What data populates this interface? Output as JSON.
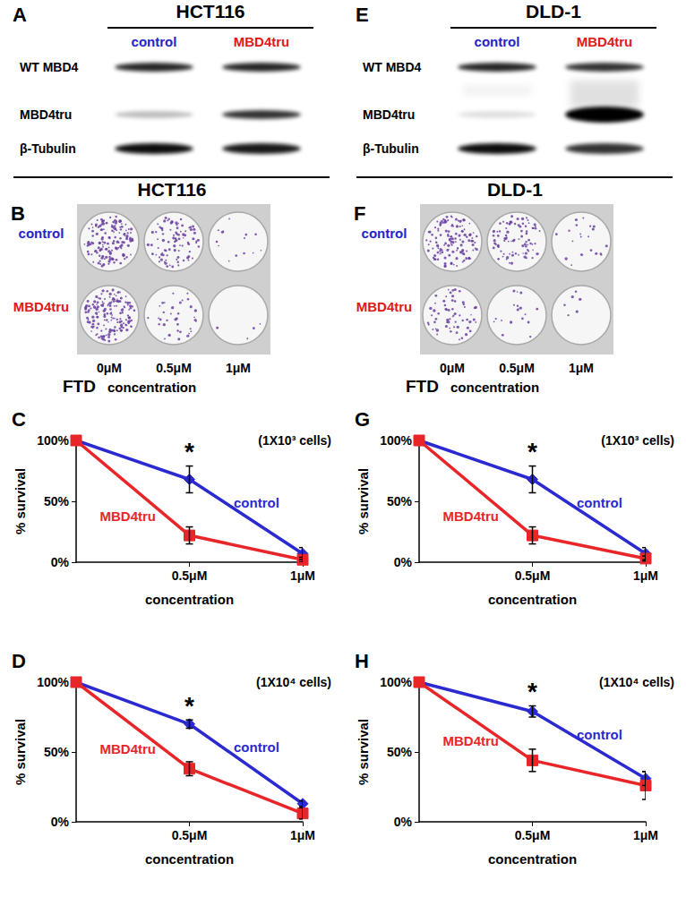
{
  "sections": [
    "HCT116",
    "DLD-1"
  ],
  "blots": [
    {
      "letter": "A",
      "title": "HCT116",
      "lanes": [
        {
          "label": "control",
          "color": "#2323c8"
        },
        {
          "label": "MBD4tru",
          "color": "#e01818"
        }
      ],
      "bands": [
        "WT MBD4",
        "MBD4tru",
        "β-Tubulin"
      ]
    },
    {
      "letter": "E",
      "title": "DLD-1",
      "lanes": [
        {
          "label": "control",
          "color": "#2323c8"
        },
        {
          "label": "MBD4tru",
          "color": "#e01818"
        }
      ],
      "bands": [
        "WT MBD4",
        "MBD4tru",
        "β-Tubulin"
      ]
    }
  ],
  "plates": [
    {
      "letter": "B",
      "rows": [
        {
          "label": "control",
          "color": "#2323c8"
        },
        {
          "label": "MBD4tru",
          "color": "#e01818"
        }
      ],
      "columns": [
        "0μM",
        "0.5μM",
        "1μM"
      ],
      "drug": "FTD",
      "axis_label": "concentration"
    },
    {
      "letter": "F",
      "rows": [
        {
          "label": "control",
          "color": "#2323c8"
        },
        {
          "label": "MBD4tru",
          "color": "#e01818"
        }
      ],
      "columns": [
        "0μM",
        "0.5μM",
        "1μM"
      ],
      "drug": "FTD",
      "axis_label": "concentration"
    }
  ],
  "chart_data": [
    {
      "type": "line",
      "letter": "C",
      "subtitle": "(1X10³ cells)",
      "annotation": {
        "text": "*",
        "x": 0.5
      },
      "x_label": "concentration",
      "y_label": "% survival",
      "x": [
        0,
        0.5,
        1
      ],
      "xlim": [
        0,
        1
      ],
      "xticks": [
        {
          "value": 0.5,
          "label": "0.5μM"
        },
        {
          "value": 1,
          "label": "1μM"
        }
      ],
      "ylim": [
        0,
        100
      ],
      "yticks": [
        {
          "value": 0,
          "label": "0%"
        },
        {
          "value": 50,
          "label": "50%"
        },
        {
          "value": 100,
          "label": "100%"
        }
      ],
      "series": [
        {
          "name": "control",
          "color": "#2a2ad0",
          "marker": "diamond",
          "values": [
            100,
            68,
            7
          ],
          "errors": [
            0,
            11,
            5
          ]
        },
        {
          "name": "MBD4tru",
          "color": "#e8262a",
          "marker": "square",
          "values": [
            100,
            22,
            2
          ],
          "errors": [
            0,
            7,
            2
          ]
        }
      ]
    },
    {
      "type": "line",
      "letter": "D",
      "subtitle": "(1X10⁴ cells)",
      "annotation": {
        "text": "*",
        "x": 0.5
      },
      "x_label": "concentration",
      "y_label": "% survival",
      "x": [
        0,
        0.5,
        1
      ],
      "xlim": [
        0,
        1
      ],
      "xticks": [
        {
          "value": 0.5,
          "label": "0.5μM"
        },
        {
          "value": 1,
          "label": "1μM"
        }
      ],
      "ylim": [
        0,
        100
      ],
      "yticks": [
        {
          "value": 0,
          "label": "0%"
        },
        {
          "value": 50,
          "label": "50%"
        },
        {
          "value": 100,
          "label": "100%"
        }
      ],
      "series": [
        {
          "name": "control",
          "color": "#2a2ad0",
          "marker": "diamond",
          "values": [
            100,
            70,
            13
          ],
          "errors": [
            0,
            3,
            2
          ]
        },
        {
          "name": "MBD4tru",
          "color": "#e8262a",
          "marker": "square",
          "values": [
            100,
            38,
            6
          ],
          "errors": [
            0,
            5,
            4
          ]
        }
      ]
    },
    {
      "type": "line",
      "letter": "G",
      "subtitle": "(1X10³ cells)",
      "annotation": {
        "text": "*",
        "x": 0.5
      },
      "x_label": "concentration",
      "y_label": "% survival",
      "x": [
        0,
        0.5,
        1
      ],
      "xlim": [
        0,
        1
      ],
      "xticks": [
        {
          "value": 0.5,
          "label": "0.5μM"
        },
        {
          "value": 1,
          "label": "1μM"
        }
      ],
      "ylim": [
        0,
        100
      ],
      "yticks": [
        {
          "value": 0,
          "label": "0%"
        },
        {
          "value": 50,
          "label": "50%"
        },
        {
          "value": 100,
          "label": "100%"
        }
      ],
      "series": [
        {
          "name": "control",
          "color": "#2a2ad0",
          "marker": "diamond",
          "values": [
            100,
            68,
            7
          ],
          "errors": [
            0,
            11,
            5
          ]
        },
        {
          "name": "MBD4tru",
          "color": "#e8262a",
          "marker": "square",
          "values": [
            100,
            22,
            3
          ],
          "errors": [
            0,
            7,
            2
          ]
        }
      ]
    },
    {
      "type": "line",
      "letter": "H",
      "subtitle": "(1X10⁴ cells)",
      "annotation": {
        "text": "*",
        "x": 0.5
      },
      "x_label": "concentration",
      "y_label": "% survival",
      "x": [
        0,
        0.5,
        1
      ],
      "xlim": [
        0,
        1
      ],
      "xticks": [
        {
          "value": 0.5,
          "label": "0.5μM"
        },
        {
          "value": 1,
          "label": "1μM"
        }
      ],
      "ylim": [
        0,
        100
      ],
      "yticks": [
        {
          "value": 0,
          "label": "0%"
        },
        {
          "value": 50,
          "label": "50%"
        },
        {
          "value": 100,
          "label": "100%"
        }
      ],
      "series": [
        {
          "name": "control",
          "color": "#2a2ad0",
          "marker": "diamond",
          "values": [
            100,
            79,
            31
          ],
          "errors": [
            0,
            4,
            5
          ]
        },
        {
          "name": "MBD4tru",
          "color": "#e8262a",
          "marker": "square",
          "values": [
            100,
            44,
            26
          ],
          "errors": [
            0,
            8,
            10
          ]
        }
      ]
    }
  ]
}
